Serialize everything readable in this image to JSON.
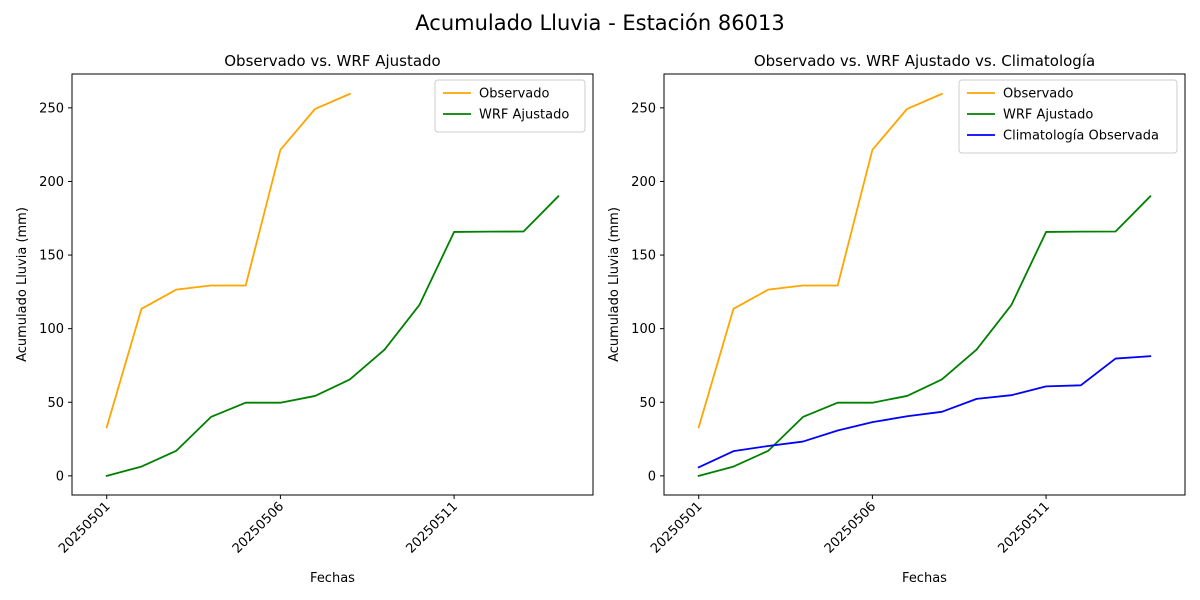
{
  "figure": {
    "title": "Acumulado Lluvia - Estación 86013"
  },
  "chart_data": [
    {
      "type": "line",
      "title": "Observado vs. WRF Ajustado",
      "xlabel": "Fechas",
      "ylabel": "Acumulado Lluvia (mm)",
      "x_dates": [
        "20250501",
        "20250502",
        "20250503",
        "20250504",
        "20250505",
        "20250506",
        "20250507",
        "20250508",
        "20250509",
        "20250510",
        "20250511",
        "20250512",
        "20250513",
        "20250514"
      ],
      "x_ticks": [
        "20250501",
        "20250506",
        "20250511"
      ],
      "y_ticks": [
        0,
        50,
        100,
        150,
        200,
        250
      ],
      "xlim": [
        "20250430",
        "20250515"
      ],
      "ylim": [
        -13,
        273
      ],
      "legend": "top-right",
      "grid": false,
      "series": [
        {
          "name": "Observado",
          "color": "#FFA500",
          "x": [
            "20250501",
            "20250502",
            "20250503",
            "20250504",
            "20250505",
            "20250506",
            "20250507",
            "20250508"
          ],
          "values": [
            33,
            113.5,
            126.5,
            129.3,
            129.3,
            221.5,
            249.3,
            259.5
          ]
        },
        {
          "name": "WRF Ajustado",
          "color": "#008000",
          "x": [
            "20250501",
            "20250502",
            "20250503",
            "20250504",
            "20250505",
            "20250506",
            "20250507",
            "20250508",
            "20250509",
            "20250510",
            "20250511",
            "20250512",
            "20250513",
            "20250514"
          ],
          "values": [
            0,
            6.3,
            17,
            40,
            49.7,
            49.7,
            54.3,
            65.5,
            85.8,
            116,
            165.7,
            165.9,
            166,
            189.9
          ]
        }
      ]
    },
    {
      "type": "line",
      "title": "Observado vs. WRF Ajustado vs. Climatología",
      "xlabel": "Fechas",
      "ylabel": "Acumulado Lluvia (mm)",
      "x_dates": [
        "20250501",
        "20250502",
        "20250503",
        "20250504",
        "20250505",
        "20250506",
        "20250507",
        "20250508",
        "20250509",
        "20250510",
        "20250511",
        "20250512",
        "20250513",
        "20250514"
      ],
      "x_ticks": [
        "20250501",
        "20250506",
        "20250511"
      ],
      "y_ticks": [
        0,
        50,
        100,
        150,
        200,
        250
      ],
      "xlim": [
        "20250430",
        "20250515"
      ],
      "ylim": [
        -13,
        273
      ],
      "legend": "top-right",
      "grid": false,
      "series": [
        {
          "name": "Observado",
          "color": "#FFA500",
          "x": [
            "20250501",
            "20250502",
            "20250503",
            "20250504",
            "20250505",
            "20250506",
            "20250507",
            "20250508"
          ],
          "values": [
            33,
            113.5,
            126.5,
            129.3,
            129.3,
            221.5,
            249.3,
            259.5
          ]
        },
        {
          "name": "WRF Ajustado",
          "color": "#008000",
          "x": [
            "20250501",
            "20250502",
            "20250503",
            "20250504",
            "20250505",
            "20250506",
            "20250507",
            "20250508",
            "20250509",
            "20250510",
            "20250511",
            "20250512",
            "20250513",
            "20250514"
          ],
          "values": [
            0,
            6.3,
            17,
            40,
            49.7,
            49.7,
            54.3,
            65.5,
            85.8,
            116,
            165.7,
            165.9,
            166,
            189.9
          ]
        },
        {
          "name": "Climatología Observada",
          "color": "#0000FF",
          "x": [
            "20250501",
            "20250502",
            "20250503",
            "20250504",
            "20250505",
            "20250506",
            "20250507",
            "20250508",
            "20250509",
            "20250510",
            "20250511",
            "20250512",
            "20250513",
            "20250514"
          ],
          "values": [
            5.8,
            16.8,
            20.3,
            23.3,
            30.8,
            36.5,
            40.5,
            43.5,
            52.3,
            54.8,
            60.8,
            61.5,
            79.7,
            81.3
          ]
        }
      ]
    }
  ]
}
